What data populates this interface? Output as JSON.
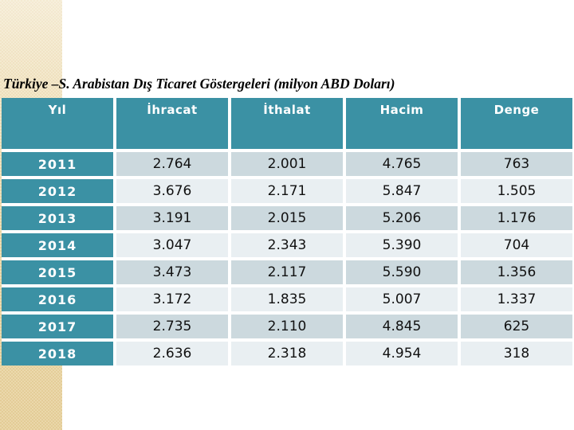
{
  "title": {
    "text": "Türkiye –S. Arabistan Dış Ticaret Göstergeleri (milyon ABD Doları)"
  },
  "colors": {
    "teal": "#3b91a4",
    "row_dark": "#ccd9de",
    "row_light": "#e9eff2",
    "strip_base": "#eeddb2",
    "strip_check": "#e6d09c"
  },
  "table": {
    "columns": [
      "Yıl",
      "İhracat",
      "İthalat",
      "Hacim",
      "Denge"
    ],
    "rows": [
      [
        "2011",
        "2.764",
        "2.001",
        "4.765",
        "763"
      ],
      [
        "2012",
        "3.676",
        "2.171",
        "5.847",
        "1.505"
      ],
      [
        "2013",
        "3.191",
        "2.015",
        "5.206",
        "1.176"
      ],
      [
        "2014",
        "3.047",
        "2.343",
        "5.390",
        "704"
      ],
      [
        "2015",
        "3.473",
        "2.117",
        "5.590",
        "1.356"
      ],
      [
        "2016",
        "3.172",
        "1.835",
        "5.007",
        "1.337"
      ],
      [
        "2017",
        "2.735",
        "2.110",
        "4.845",
        "625"
      ],
      [
        "2018",
        "2.636",
        "2.318",
        "4.954",
        "318"
      ]
    ]
  }
}
